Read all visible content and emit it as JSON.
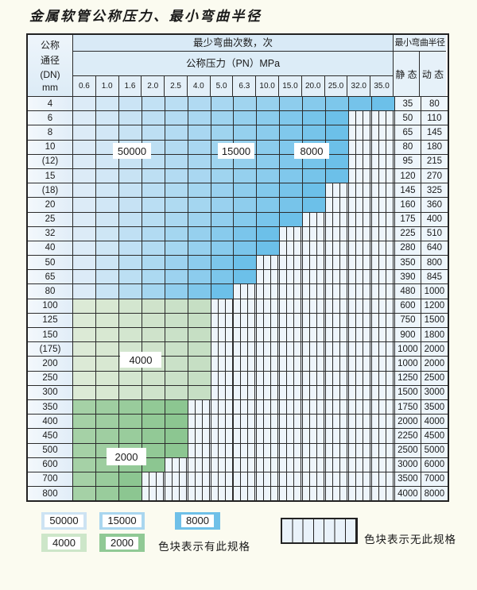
{
  "title": "金属软管公称压力、最小弯曲半径",
  "header": {
    "dn_lines": [
      "公称",
      "通径",
      "(DN)",
      "mm"
    ],
    "bend_cycles_label": "最少弯曲次数，次",
    "pressure_label": "公称压力（PN）MPa",
    "pressure_columns": [
      "0.6",
      "1.0",
      "1.6",
      "2.0",
      "2.5",
      "4.0",
      "5.0",
      "6.3",
      "10.0",
      "15.0",
      "20.0",
      "25.0",
      "32.0",
      "35.0"
    ],
    "radius_label": "最小弯曲半径",
    "static_label": "静 态",
    "dynamic_label": "动 态"
  },
  "rows": [
    {
      "dn": "4",
      "colored_cols": 14,
      "zone": "blue",
      "static": "35",
      "dynamic": "80"
    },
    {
      "dn": "6",
      "colored_cols": 12,
      "zone": "blue",
      "static": "50",
      "dynamic": "110"
    },
    {
      "dn": "8",
      "colored_cols": 12,
      "zone": "blue",
      "static": "65",
      "dynamic": "145"
    },
    {
      "dn": "10",
      "colored_cols": 12,
      "zone": "blue",
      "static": "80",
      "dynamic": "180"
    },
    {
      "dn": "(12)",
      "colored_cols": 12,
      "zone": "blue",
      "static": "95",
      "dynamic": "215"
    },
    {
      "dn": "15",
      "colored_cols": 12,
      "zone": "blue",
      "static": "120",
      "dynamic": "270"
    },
    {
      "dn": "(18)",
      "colored_cols": 11,
      "zone": "blue",
      "static": "145",
      "dynamic": "325"
    },
    {
      "dn": "20",
      "colored_cols": 11,
      "zone": "blue",
      "static": "160",
      "dynamic": "360"
    },
    {
      "dn": "25",
      "colored_cols": 10,
      "zone": "blue",
      "static": "175",
      "dynamic": "400"
    },
    {
      "dn": "32",
      "colored_cols": 9,
      "zone": "blue",
      "static": "225",
      "dynamic": "510"
    },
    {
      "dn": "40",
      "colored_cols": 9,
      "zone": "blue",
      "static": "280",
      "dynamic": "640"
    },
    {
      "dn": "50",
      "colored_cols": 8,
      "zone": "blue",
      "static": "350",
      "dynamic": "800"
    },
    {
      "dn": "65",
      "colored_cols": 8,
      "zone": "blue",
      "static": "390",
      "dynamic": "845"
    },
    {
      "dn": "80",
      "colored_cols": 7,
      "zone": "blue",
      "static": "480",
      "dynamic": "1000"
    },
    {
      "dn": "100",
      "colored_cols": 6,
      "zone": "green_light",
      "static": "600",
      "dynamic": "1200"
    },
    {
      "dn": "125",
      "colored_cols": 6,
      "zone": "green_light",
      "static": "750",
      "dynamic": "1500"
    },
    {
      "dn": "150",
      "colored_cols": 6,
      "zone": "green_light",
      "static": "900",
      "dynamic": "1800"
    },
    {
      "dn": "(175)",
      "colored_cols": 6,
      "zone": "green_light",
      "static": "1000",
      "dynamic": "2000"
    },
    {
      "dn": "200",
      "colored_cols": 6,
      "zone": "green_light",
      "static": "1000",
      "dynamic": "2000"
    },
    {
      "dn": "250",
      "colored_cols": 6,
      "zone": "green_light",
      "static": "1250",
      "dynamic": "2500"
    },
    {
      "dn": "300",
      "colored_cols": 6,
      "zone": "green_light",
      "static": "1500",
      "dynamic": "3000"
    },
    {
      "dn": "350",
      "colored_cols": 5,
      "zone": "green_mid",
      "static": "1750",
      "dynamic": "3500"
    },
    {
      "dn": "400",
      "colored_cols": 5,
      "zone": "green_mid",
      "static": "2000",
      "dynamic": "4000"
    },
    {
      "dn": "450",
      "colored_cols": 5,
      "zone": "green_mid",
      "static": "2250",
      "dynamic": "4500"
    },
    {
      "dn": "500",
      "colored_cols": 5,
      "zone": "green_mid",
      "static": "2500",
      "dynamic": "5000"
    },
    {
      "dn": "600",
      "colored_cols": 4,
      "zone": "green_mid",
      "static": "3000",
      "dynamic": "6000"
    },
    {
      "dn": "700",
      "colored_cols": 3,
      "zone": "green_mid",
      "static": "3500",
      "dynamic": "7000"
    },
    {
      "dn": "800",
      "colored_cols": 3,
      "zone": "green_mid",
      "static": "4000",
      "dynamic": "8000"
    }
  ],
  "cycle_labels": [
    {
      "text": "50000"
    },
    {
      "text": "15000"
    },
    {
      "text": "8000"
    },
    {
      "text": "4000"
    },
    {
      "text": "2000"
    }
  ],
  "legend": {
    "items": [
      {
        "label": "50000",
        "color": "#cde3f3"
      },
      {
        "label": "15000",
        "color": "#a9d6ef"
      },
      {
        "label": "8000",
        "color": "#6fc0e8"
      },
      {
        "label": "4000",
        "color": "#cde6c9"
      },
      {
        "label": "2000",
        "color": "#90c995"
      }
    ],
    "has_spec_text": "色块表示有此规格",
    "no_spec_text": "色块表示无此规格"
  },
  "colors": {
    "blue_start": "#dcebf7",
    "blue_end": "#6cc0e9",
    "green_light_start": "#dcead6",
    "green_light_end": "#c6dfc4",
    "green_mid_start": "#a5d1a6",
    "green_mid_end": "#8cc691",
    "grid_line": "#2b2b2b"
  }
}
